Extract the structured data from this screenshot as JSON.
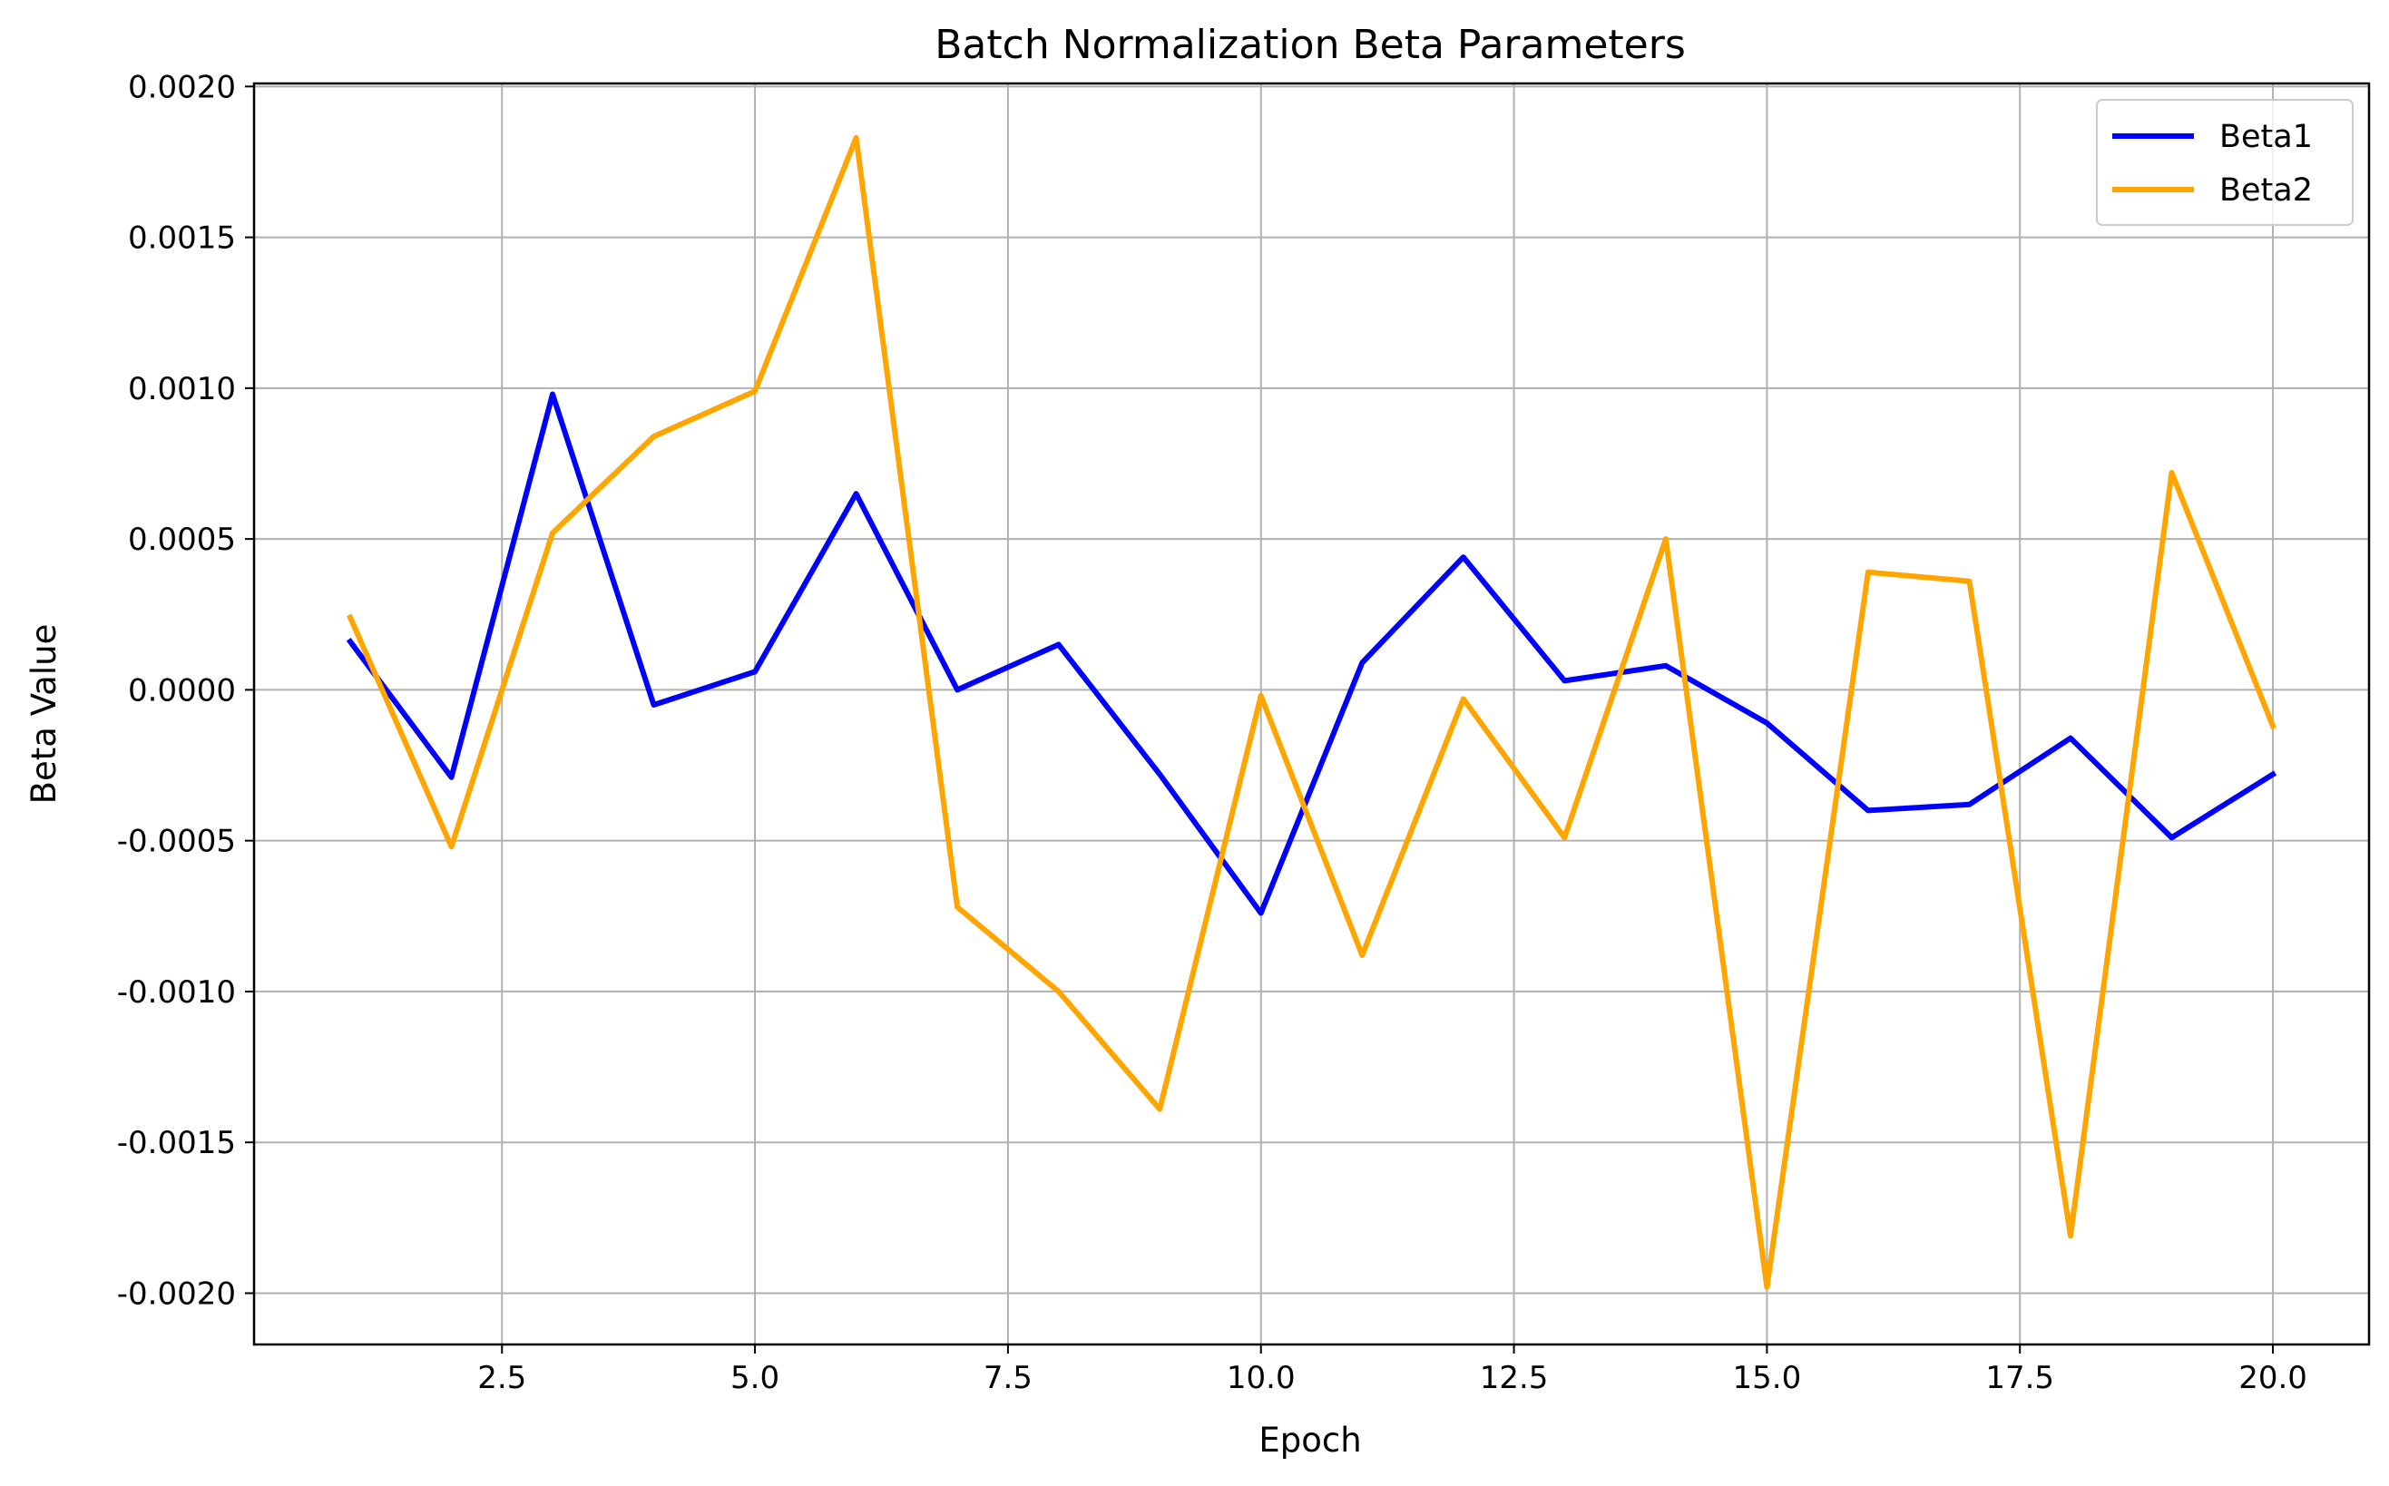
{
  "chart_data": {
    "type": "line",
    "title": "Batch Normalization Beta Parameters",
    "xlabel": "Epoch",
    "ylabel": "Beta Value",
    "x": [
      1,
      2,
      3,
      4,
      5,
      6,
      7,
      8,
      9,
      10,
      11,
      12,
      13,
      14,
      15,
      16,
      17,
      18,
      19,
      20
    ],
    "xlim": [
      0.05,
      20.95
    ],
    "ylim": [
      -0.00217,
      0.00201
    ],
    "xticks": [
      2.5,
      5.0,
      7.5,
      10.0,
      12.5,
      15.0,
      17.5,
      20.0
    ],
    "xtick_labels": [
      "2.5",
      "5.0",
      "7.5",
      "10.0",
      "12.5",
      "15.0",
      "17.5",
      "20.0"
    ],
    "yticks": [
      -0.002,
      -0.0015,
      -0.001,
      -0.0005,
      0.0,
      0.0005,
      0.001,
      0.0015,
      0.002
    ],
    "ytick_labels": [
      "-0.0020",
      "-0.0015",
      "-0.0010",
      "-0.0005",
      "0.0000",
      "0.0005",
      "0.0010",
      "0.0015",
      "0.0020"
    ],
    "grid": true,
    "legend_position": "top-right",
    "series": [
      {
        "name": "Beta1",
        "color": "#0000ff",
        "values": [
          0.00016,
          -0.00029,
          0.00098,
          -5e-05,
          6e-05,
          0.00065,
          0.0,
          0.00015,
          -0.00028,
          -0.00074,
          9e-05,
          0.00044,
          3e-05,
          8e-05,
          -0.00011,
          -0.0004,
          -0.00038,
          -0.00016,
          -0.00049,
          -0.00028
        ]
      },
      {
        "name": "Beta2",
        "color": "#ffa500",
        "values": [
          0.00024,
          -0.00052,
          0.00052,
          0.00084,
          0.00099,
          0.00183,
          -0.00072,
          -0.001,
          -0.00139,
          -2e-05,
          -0.00088,
          -3e-05,
          -0.00049,
          0.0005,
          -0.00198,
          0.00039,
          0.00036,
          -0.00181,
          0.00072,
          -0.00012
        ]
      }
    ]
  }
}
